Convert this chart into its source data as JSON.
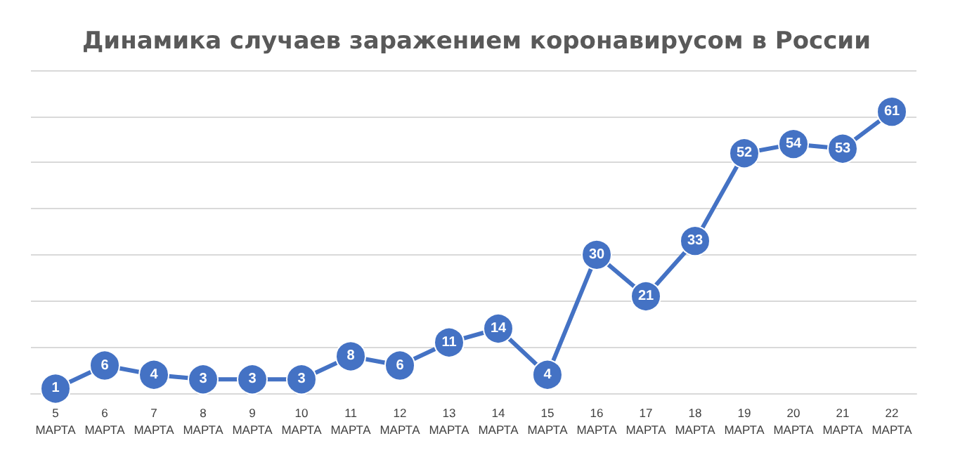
{
  "chart_data": {
    "type": "line",
    "title": "Динамика случаев заражением коронавирусом в России",
    "categories": [
      "5 МАРТА",
      "6 МАРТА",
      "7 МАРТА",
      "8 МАРТА",
      "9 МАРТА",
      "10 МАРТА",
      "11 МАРТА",
      "12 МАРТА",
      "13 МАРТА",
      "14 МАРТА",
      "15 МАРТА",
      "16 МАРТА",
      "17 МАРТА",
      "18 МАРТА",
      "19 МАРТА",
      "20 МАРТА",
      "21 МАРТА",
      "22 МАРТА"
    ],
    "series": [
      {
        "color": "#4472c4",
        "values": [
          1,
          6,
          4,
          3,
          3,
          3,
          8,
          6,
          11,
          14,
          4,
          30,
          21,
          33,
          52,
          54,
          53,
          61
        ]
      }
    ],
    "ylim": [
      0,
      70
    ],
    "yticks": [
      {
        "value": 0,
        "label": null
      },
      {
        "value": 10,
        "label": null
      },
      {
        "value": 20,
        "label": null
      },
      {
        "value": 30,
        "label": null
      },
      {
        "value": 40,
        "label": null
      },
      {
        "value": 50,
        "label": null
      },
      {
        "value": 60,
        "label": null
      },
      {
        "value": 70,
        "label": null
      }
    ],
    "tick_labels": "x",
    "grid": "y",
    "marker": "circle",
    "line_style": "solid",
    "data_labels": true
  }
}
